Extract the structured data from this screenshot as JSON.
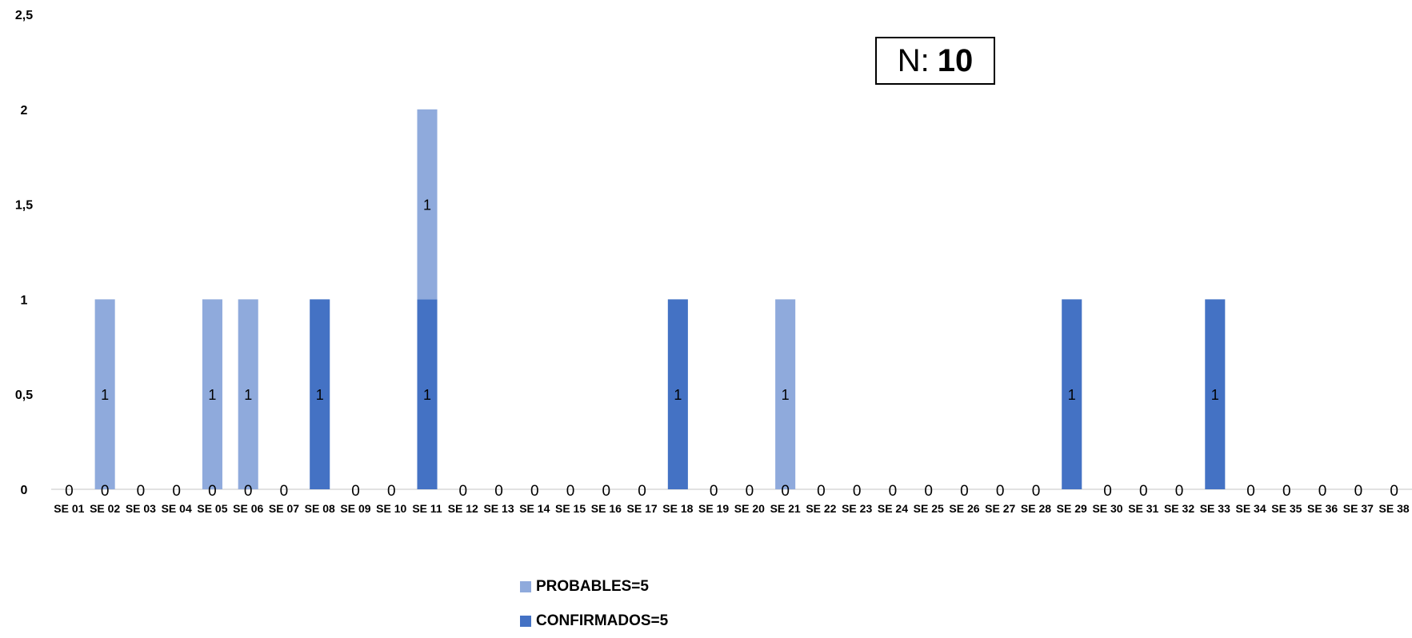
{
  "chart_data": {
    "type": "bar",
    "stacked": true,
    "title": "",
    "xlabel": "",
    "ylabel": "",
    "ylim": [
      0,
      2.5
    ],
    "yticks": [
      "0",
      "0,5",
      "1",
      "1,5",
      "2",
      "2,5"
    ],
    "yticks_values": [
      0,
      0.5,
      1,
      1.5,
      2,
      2.5
    ],
    "grid": false,
    "legend_position": "bottom",
    "categories": [
      "SE 01",
      "SE 02",
      "SE 03",
      "SE 04",
      "SE 05",
      "SE 06",
      "SE 07",
      "SE 08",
      "SE 09",
      "SE 10",
      "SE 11",
      "SE 12",
      "SE 13",
      "SE 14",
      "SE 15",
      "SE 16",
      "SE 17",
      "SE 18",
      "SE 19",
      "SE 20",
      "SE 21",
      "SE 22",
      "SE 23",
      "SE 24",
      "SE 25",
      "SE 26",
      "SE 27",
      "SE 28",
      "SE 29",
      "SE 30",
      "SE 31",
      "SE 32",
      "SE 33",
      "SE 34",
      "SE 35",
      "SE 36",
      "SE 37",
      "SE 38"
    ],
    "series": [
      {
        "name": "CONFIRMADOS=5",
        "color": "#4472C4",
        "values": [
          0,
          0,
          0,
          0,
          0,
          0,
          0,
          1,
          0,
          0,
          1,
          0,
          0,
          0,
          0,
          0,
          0,
          1,
          0,
          0,
          0,
          0,
          0,
          0,
          0,
          0,
          0,
          0,
          1,
          0,
          0,
          0,
          1,
          0,
          0,
          0,
          0,
          0
        ]
      },
      {
        "name": "PROBABLES=5",
        "color": "#8FAADC",
        "values": [
          0,
          1,
          0,
          0,
          1,
          1,
          0,
          0,
          0,
          0,
          1,
          0,
          0,
          0,
          0,
          0,
          0,
          0,
          0,
          0,
          1,
          0,
          0,
          0,
          0,
          0,
          0,
          0,
          0,
          0,
          0,
          0,
          0,
          0,
          0,
          0,
          0,
          0
        ]
      }
    ],
    "annotation": {
      "label": "N:",
      "value": "10"
    },
    "legend_order": [
      "PROBABLES=5",
      "CONFIRMADOS=5"
    ]
  }
}
